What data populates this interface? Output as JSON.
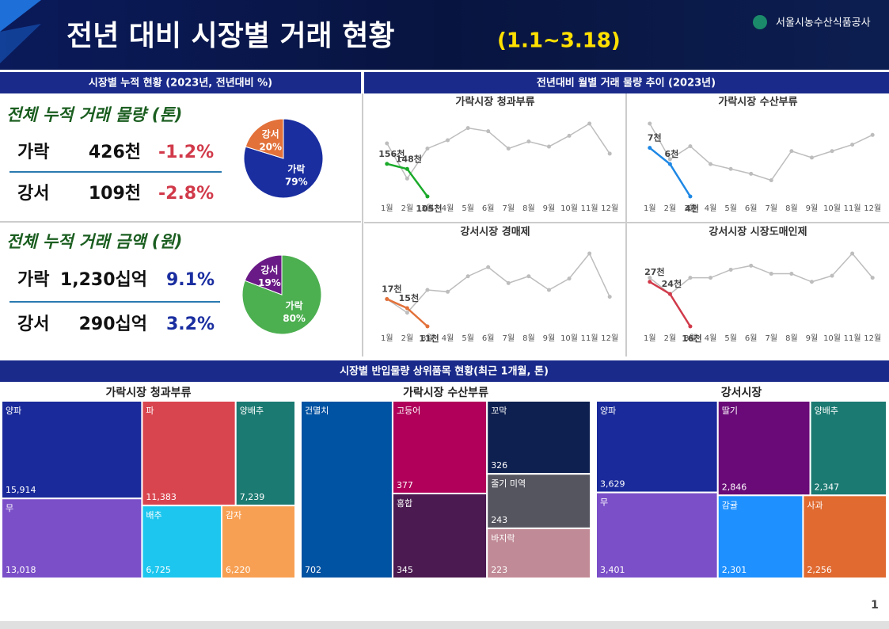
{
  "header": {
    "title": "전년 대비 시장별 거래 현황",
    "period": "(1.1~3.18)",
    "org": "서울시농수산식품공사"
  },
  "cumulative": {
    "heading": "시장별 누적 현황 (2023년, 전년대비 %)",
    "volume": {
      "title": "전체 누적 거래 물량 (톤)",
      "rows": [
        {
          "market": "가락",
          "value": "426천",
          "change": "-1.2%"
        },
        {
          "market": "강서",
          "value": "109천",
          "change": "-2.8%"
        }
      ]
    },
    "amount": {
      "title": "전체 누적 거래 금액 (원)",
      "rows": [
        {
          "market": "가락",
          "value": "1,230십억",
          "change": "9.1%"
        },
        {
          "market": "강서",
          "value": "290십억",
          "change": "3.2%"
        }
      ]
    }
  },
  "trend_heading": "전년대비 월별 거래 물량 추이 (2023년)",
  "top_heading": "시장별 반입물량 상위품목 현황(최근 1개월, 톤)",
  "page_number": "1",
  "chart_data": [
    {
      "type": "pie",
      "categories": [
        "가락",
        "강서"
      ],
      "values": [
        79,
        20
      ],
      "value_labels": [
        "79%",
        "20%"
      ],
      "colors": [
        "#1a2ea0",
        "#e2713a"
      ]
    },
    {
      "type": "pie",
      "categories": [
        "가락",
        "강서"
      ],
      "values": [
        80,
        19
      ],
      "value_labels": [
        "80%",
        "19%"
      ],
      "colors": [
        "#4caf50",
        "#6a1a86"
      ]
    },
    {
      "type": "line",
      "title": "가락시장 청과부류",
      "categories": [
        "1월",
        "2월",
        "3월",
        "4월",
        "5월",
        "6월",
        "7월",
        "8월",
        "9월",
        "10월",
        "11월",
        "12월"
      ],
      "series": [
        {
          "color": "#bdbdbd",
          "values": [
            188,
            133,
            180,
            193,
            212,
            207,
            180,
            191,
            183,
            200,
            219,
            172
          ]
        },
        {
          "color": "#1aaa2a",
          "values": [
            156,
            148,
            105,
            null,
            null,
            null,
            null,
            null,
            null,
            null,
            null,
            null
          ],
          "value_labels": [
            "156천",
            "148천",
            "105천",
            null,
            null,
            null,
            null,
            null,
            null,
            null,
            null,
            null
          ]
        }
      ]
    },
    {
      "type": "line",
      "title": "가락시장 수산부류",
      "categories": [
        "1월",
        "2월",
        "3월",
        "4월",
        "5월",
        "6월",
        "7월",
        "8월",
        "9월",
        "10월",
        "11월",
        "12월"
      ],
      "series": [
        {
          "color": "#bdbdbd",
          "values": [
            8.5,
            6.3,
            7.1,
            6,
            5.7,
            5.4,
            5,
            6.8,
            6.4,
            6.8,
            7.2,
            7.8
          ]
        },
        {
          "color": "#1e88e5",
          "values": [
            7,
            6,
            4,
            null,
            null,
            null,
            null,
            null,
            null,
            null,
            null,
            null
          ],
          "value_labels": [
            "7천",
            "6천",
            "4천",
            null,
            null,
            null,
            null,
            null,
            null,
            null,
            null,
            null
          ]
        }
      ]
    },
    {
      "type": "line",
      "title": "강서시장 경매제",
      "categories": [
        "1월",
        "2월",
        "3월",
        "4월",
        "5월",
        "6월",
        "7월",
        "8월",
        "9월",
        "10월",
        "11월",
        "12월"
      ],
      "series": [
        {
          "color": "#bdbdbd",
          "values": [
            17,
            14,
            19,
            18.6,
            22,
            24,
            20.5,
            22,
            19,
            21.5,
            27,
            17.5
          ]
        },
        {
          "color": "#e2713a",
          "values": [
            17,
            15,
            11,
            null,
            null,
            null,
            null,
            null,
            null,
            null,
            null,
            null
          ],
          "value_labels": [
            "17천",
            "15천",
            "11천",
            null,
            null,
            null,
            null,
            null,
            null,
            null,
            null,
            null
          ]
        }
      ]
    },
    {
      "type": "line",
      "title": "강서시장 시장도매인제",
      "categories": [
        "1월",
        "2월",
        "3월",
        "4월",
        "5월",
        "6월",
        "7월",
        "8월",
        "9월",
        "10월",
        "11월",
        "12월"
      ],
      "series": [
        {
          "color": "#bdbdbd",
          "values": [
            28,
            24,
            28,
            28,
            30,
            31,
            29,
            29,
            27,
            28.5,
            34,
            28
          ]
        },
        {
          "color": "#d13a4a",
          "values": [
            27,
            24,
            16,
            null,
            null,
            null,
            null,
            null,
            null,
            null,
            null,
            null
          ],
          "value_labels": [
            "27천",
            "24천",
            "16천",
            null,
            null,
            null,
            null,
            null,
            null,
            null,
            null,
            null
          ]
        }
      ]
    },
    {
      "type": "treemap",
      "title": "가락시장 청과부류",
      "categories": [
        "양파",
        "무",
        "파",
        "양배추",
        "배추",
        "감자"
      ],
      "values": [
        15914,
        13018,
        11383,
        7239,
        6725,
        6220
      ],
      "value_labels": [
        "15,914",
        "13,018",
        "11,383",
        "7,239",
        "6,725",
        "6,220"
      ],
      "colors": [
        "#1a2a9a",
        "#7b4fc8",
        "#d9454f",
        "#1b7a72",
        "#1cc6ee",
        "#f7a054"
      ]
    },
    {
      "type": "treemap",
      "title": "가락시장 수산부류",
      "categories": [
        "건멸치",
        "고등어",
        "홍합",
        "꼬막",
        "줄기 미역",
        "바지락"
      ],
      "values": [
        702,
        377,
        345,
        326,
        243,
        223
      ],
      "value_labels": [
        "702",
        "377",
        "345",
        "326",
        "243",
        "223"
      ],
      "colors": [
        "#0052a2",
        "#b0005a",
        "#4a1a50",
        "#0e2050",
        "#555560",
        "#c08a96"
      ]
    },
    {
      "type": "treemap",
      "title": "강서시장",
      "categories": [
        "양파",
        "무",
        "딸기",
        "양배추",
        "감귤",
        "사과"
      ],
      "values": [
        3629,
        3401,
        2846,
        2347,
        2301,
        2256
      ],
      "value_labels": [
        "3,629",
        "3,401",
        "2,846",
        "2,347",
        "2,301",
        "2,256"
      ],
      "colors": [
        "#1a2a9a",
        "#7b4fc8",
        "#6a0a78",
        "#1b7a72",
        "#1e90ff",
        "#e06a30"
      ]
    }
  ]
}
